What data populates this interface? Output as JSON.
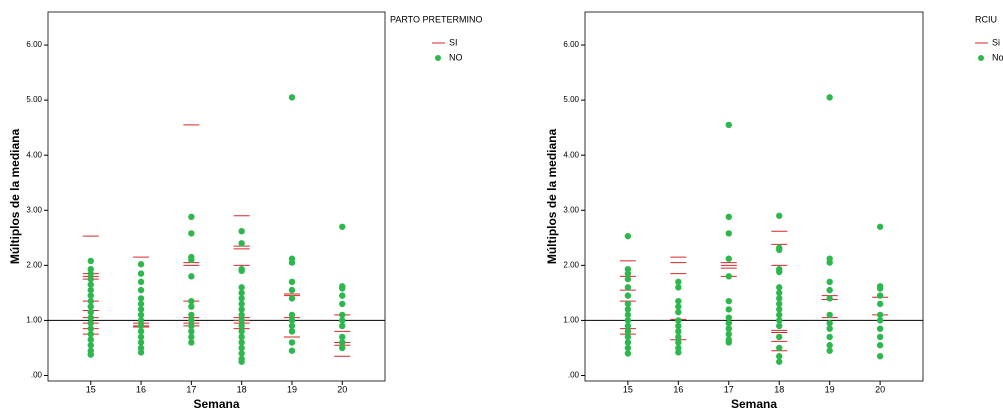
{
  "chart_data": [
    {
      "type": "scatter",
      "xlabel": "Semana",
      "ylabel": "Múltiplos de la mediana",
      "legend_title": "PARTO PRETERMINO",
      "legend": "top-right-outside",
      "xlim": [
        14.15,
        20.85
      ],
      "xticks": [
        15,
        16,
        17,
        18,
        19,
        20
      ],
      "ylim": [
        -0.1,
        6.6
      ],
      "yticks": [
        {
          "value": 0,
          "label": ".00"
        },
        {
          "value": 1,
          "label": "1.00"
        },
        {
          "value": 2,
          "label": "2.00"
        },
        {
          "value": 3,
          "label": "3.00"
        },
        {
          "value": 4,
          "label": "4.00"
        },
        {
          "value": 5,
          "label": "5.00"
        },
        {
          "value": 6,
          "label": "6.00"
        }
      ],
      "reference_line": 1,
      "series": [
        {
          "name": "SI",
          "color": "#d62728",
          "marker": "dash",
          "x": [
            15,
            15,
            15,
            15,
            15,
            15,
            15,
            15,
            15,
            15,
            16,
            16,
            16,
            16,
            17,
            17,
            17,
            17,
            17,
            17,
            17,
            18,
            18,
            18,
            18,
            18,
            18,
            18,
            18,
            19,
            19,
            19,
            19,
            20,
            20,
            20,
            20,
            20
          ],
          "values": [
            2.53,
            1.85,
            1.8,
            1.75,
            1.35,
            1.18,
            1.05,
            0.95,
            0.85,
            0.75,
            2.15,
            0.95,
            0.9,
            0.88,
            4.55,
            2.05,
            2.0,
            1.35,
            1.05,
            0.95,
            0.9,
            2.9,
            2.35,
            2.3,
            2.0,
            1.05,
            1.0,
            0.95,
            0.85,
            1.48,
            1.45,
            1.05,
            0.7,
            1.1,
            0.8,
            0.6,
            0.55,
            0.35
          ]
        },
        {
          "name": "NO",
          "color": "#2db84d",
          "marker": "dot",
          "x": [
            15,
            15,
            15,
            15,
            15,
            15,
            15,
            15,
            15,
            15,
            15,
            15,
            15,
            15,
            15,
            15,
            15,
            15,
            16,
            16,
            16,
            16,
            16,
            16,
            16,
            16,
            16,
            16,
            16,
            16,
            16,
            16,
            16,
            17,
            17,
            17,
            17,
            17,
            17,
            17,
            17,
            17,
            17,
            17,
            17,
            17,
            18,
            18,
            18,
            18,
            18,
            18,
            18,
            18,
            18,
            18,
            18,
            18,
            18,
            18,
            18,
            18,
            18,
            18,
            18,
            19,
            19,
            19,
            19,
            19,
            19,
            19,
            19,
            19,
            19,
            19,
            19,
            20,
            20,
            20,
            20,
            20,
            20,
            20,
            20,
            20,
            20,
            20
          ],
          "values": [
            2.08,
            1.93,
            1.85,
            1.75,
            1.65,
            1.55,
            1.45,
            1.35,
            1.25,
            1.15,
            1.05,
            0.95,
            0.85,
            0.75,
            0.65,
            0.55,
            0.45,
            0.38,
            2.02,
            1.85,
            1.7,
            1.55,
            1.4,
            1.3,
            1.2,
            1.1,
            1.0,
            0.9,
            0.8,
            0.7,
            0.6,
            0.5,
            0.42,
            2.88,
            2.58,
            2.15,
            2.1,
            1.8,
            1.35,
            1.25,
            1.1,
            1.0,
            0.9,
            0.8,
            0.7,
            0.6,
            2.62,
            2.4,
            1.93,
            1.9,
            1.6,
            1.5,
            1.4,
            1.3,
            1.2,
            1.1,
            1.0,
            0.9,
            0.8,
            0.7,
            0.6,
            0.5,
            0.4,
            0.3,
            0.25,
            5.05,
            2.12,
            2.05,
            1.7,
            1.55,
            1.4,
            1.1,
            1.0,
            0.9,
            0.8,
            0.6,
            0.45,
            2.7,
            1.62,
            1.58,
            1.45,
            1.3,
            1.1,
            1.0,
            0.9,
            0.7,
            0.6,
            0.5
          ]
        }
      ]
    },
    {
      "type": "scatter",
      "xlabel": "Semana",
      "ylabel": "Múltiplos de la mediana",
      "legend_title": "RCIU",
      "legend": "top-right-outside",
      "xlim": [
        14.15,
        20.85
      ],
      "xticks": [
        15,
        16,
        17,
        18,
        19,
        20
      ],
      "ylim": [
        -0.1,
        6.6
      ],
      "yticks": [
        {
          "value": 0,
          "label": ".00"
        },
        {
          "value": 1,
          "label": "1.00"
        },
        {
          "value": 2,
          "label": "2.00"
        },
        {
          "value": 3,
          "label": "3.00"
        },
        {
          "value": 4,
          "label": "4.00"
        },
        {
          "value": 5,
          "label": "5.00"
        },
        {
          "value": 6,
          "label": "6.00"
        }
      ],
      "reference_line": 1,
      "series": [
        {
          "name": "Si",
          "color": "#d62728",
          "marker": "dash",
          "x": [
            15,
            15,
            15,
            15,
            15,
            15,
            16,
            16,
            16,
            16,
            16,
            17,
            17,
            17,
            17,
            18,
            18,
            18,
            18,
            18,
            18,
            18,
            19,
            19,
            19,
            20,
            20
          ],
          "values": [
            2.08,
            1.8,
            1.55,
            1.35,
            0.85,
            0.75,
            2.15,
            2.05,
            1.85,
            1.02,
            0.65,
            2.05,
            2.0,
            1.95,
            1.8,
            2.62,
            2.38,
            2.0,
            0.82,
            0.78,
            0.62,
            0.45,
            1.45,
            1.38,
            1.05,
            1.42,
            1.1
          ]
        },
        {
          "name": "No",
          "color": "#2db84d",
          "marker": "dot",
          "x": [
            15,
            15,
            15,
            15,
            15,
            15,
            15,
            15,
            15,
            15,
            15,
            15,
            15,
            15,
            15,
            15,
            16,
            16,
            16,
            16,
            16,
            16,
            16,
            16,
            16,
            16,
            16,
            16,
            17,
            17,
            17,
            17,
            17,
            17,
            17,
            17,
            17,
            17,
            17,
            17,
            17,
            18,
            18,
            18,
            18,
            18,
            18,
            18,
            18,
            18,
            18,
            18,
            18,
            18,
            18,
            18,
            18,
            18,
            19,
            19,
            19,
            19,
            19,
            19,
            19,
            19,
            19,
            19,
            19,
            19,
            20,
            20,
            20,
            20,
            20,
            20,
            20,
            20,
            20,
            20,
            20
          ],
          "values": [
            2.53,
            1.93,
            1.85,
            1.75,
            1.6,
            1.45,
            1.3,
            1.2,
            1.1,
            1.0,
            0.9,
            0.8,
            0.7,
            0.6,
            0.5,
            0.4,
            1.7,
            1.6,
            1.35,
            1.25,
            1.15,
            1.0,
            0.9,
            0.8,
            0.7,
            0.6,
            0.5,
            0.42,
            4.55,
            2.88,
            2.58,
            2.12,
            1.8,
            1.35,
            1.2,
            1.05,
            0.95,
            0.85,
            0.75,
            0.65,
            0.6,
            2.9,
            2.32,
            2.28,
            1.93,
            1.88,
            1.6,
            1.5,
            1.4,
            1.3,
            1.2,
            1.1,
            1.0,
            0.9,
            0.7,
            0.5,
            0.35,
            0.25,
            5.05,
            2.12,
            2.05,
            1.7,
            1.55,
            1.4,
            1.1,
            0.95,
            0.85,
            0.7,
            0.55,
            0.45,
            2.7,
            1.62,
            1.58,
            1.45,
            1.3,
            1.1,
            1.0,
            0.85,
            0.7,
            0.55,
            0.35
          ]
        }
      ]
    }
  ]
}
